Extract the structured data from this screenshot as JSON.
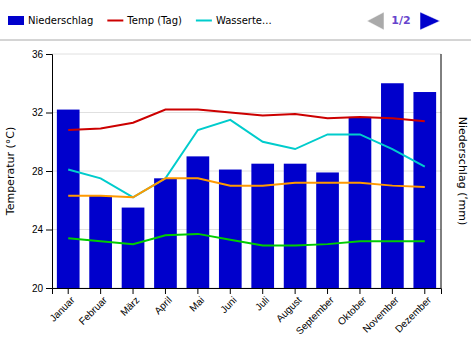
{
  "chart_data": {
    "type": "bar",
    "ylabel": "Temperatur (°C)",
    "y2label": "Niederschlag (ʹmm)",
    "categories": [
      "Januar",
      "Februar",
      "März",
      "April",
      "Mai",
      "Juni",
      "Juli",
      "August",
      "September",
      "Oktober",
      "November",
      "Dezember"
    ],
    "series": [
      {
        "name": "Niederschlag",
        "type": "bar",
        "color": "#0000cc",
        "values": [
          32.2,
          26.3,
          25.5,
          27.5,
          29.0,
          28.1,
          28.5,
          28.5,
          27.9,
          31.7,
          34.0,
          33.4
        ]
      },
      {
        "name": "Temp (Tag)",
        "type": "line",
        "color": "#cc0000",
        "values": [
          30.8,
          30.9,
          31.3,
          32.2,
          32.2,
          32.0,
          31.8,
          31.9,
          31.6,
          31.7,
          31.6,
          31.4
        ]
      },
      {
        "name": "Wasserte...",
        "type": "line",
        "color": "#00cccc",
        "values": [
          28.1,
          27.5,
          26.2,
          27.5,
          30.8,
          31.5,
          30.0,
          29.5,
          30.5,
          30.5,
          29.5,
          28.3
        ]
      },
      {
        "type": "line",
        "color": "#00cc00",
        "values": [
          23.4,
          23.2,
          23.0,
          23.6,
          23.7,
          23.3,
          22.9,
          22.9,
          23.0,
          23.2,
          23.2,
          23.2
        ]
      },
      {
        "type": "line",
        "color": "#ff9900",
        "values": [
          26.3,
          26.3,
          26.2,
          27.5,
          27.5,
          27.0,
          27.0,
          27.2,
          27.2,
          27.2,
          27.0,
          26.9
        ]
      }
    ],
    "ylim": [
      20,
      36
    ],
    "yticks": [
      20,
      24,
      28,
      32,
      36
    ],
    "grid": true,
    "legend": "upper left",
    "annotations": [
      "1/2"
    ]
  }
}
